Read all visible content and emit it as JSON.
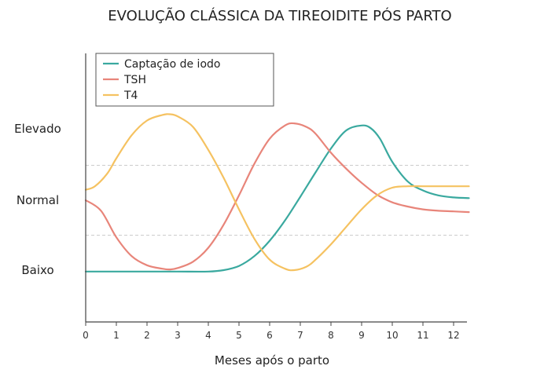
{
  "chart_data": {
    "type": "line",
    "title": "EVOLUÇÃO CLÁSSICA DA TIREOIDITE PÓS PARTO",
    "xlabel": "Meses após o parto",
    "ylabel": "",
    "xlim": [
      0,
      12.5
    ],
    "ylim": [
      -1.6,
      2.4
    ],
    "x_ticks": [
      "0",
      "1",
      "2",
      "3",
      "4",
      "5",
      "6",
      "7",
      "8",
      "9",
      "10",
      "11",
      "12"
    ],
    "y_levels": [
      {
        "label": "Elevado",
        "value": 1
      },
      {
        "label": "Normal",
        "value": 0
      },
      {
        "label": "Baixo",
        "value": -1
      }
    ],
    "reference_lines": [
      0.5,
      -0.5
    ],
    "legend_position": "top-left",
    "series": [
      {
        "name": "Captação de iodo",
        "color": "#3aa99f",
        "x": [
          0,
          1,
          2,
          3,
          4,
          4.5,
          5,
          5.5,
          6,
          6.5,
          7,
          7.5,
          8,
          8.5,
          9,
          9.3,
          9.6,
          10,
          10.5,
          11,
          11.5,
          12,
          12.5
        ],
        "values": [
          -1.02,
          -1.02,
          -1.02,
          -1.02,
          -1.02,
          -1.0,
          -0.94,
          -0.8,
          -0.58,
          -0.29,
          0.05,
          0.4,
          0.74,
          1.0,
          1.07,
          1.03,
          0.88,
          0.55,
          0.27,
          0.14,
          0.07,
          0.04,
          0.03
        ]
      },
      {
        "name": "TSH",
        "color": "#e8857a",
        "x": [
          0,
          0.5,
          1,
          1.5,
          2,
          2.5,
          2.75,
          3,
          3.5,
          4,
          4.5,
          5,
          5.5,
          6,
          6.5,
          6.8,
          7.2,
          7.5,
          8,
          8.5,
          9,
          9.5,
          10,
          10.5,
          11,
          11.5,
          12,
          12.5
        ],
        "values": [
          0.0,
          -0.15,
          -0.53,
          -0.8,
          -0.93,
          -0.98,
          -0.99,
          -0.97,
          -0.88,
          -0.68,
          -0.35,
          0.07,
          0.52,
          0.88,
          1.07,
          1.1,
          1.05,
          0.95,
          0.68,
          0.45,
          0.25,
          0.08,
          -0.03,
          -0.09,
          -0.13,
          -0.15,
          -0.16,
          -0.17
        ]
      },
      {
        "name": "T4",
        "color": "#f5c261",
        "x": [
          0,
          0.3,
          0.7,
          1,
          1.5,
          2,
          2.5,
          2.75,
          3,
          3.5,
          4,
          4.5,
          5,
          5.5,
          6,
          6.5,
          6.8,
          7.2,
          7.5,
          8,
          8.5,
          9,
          9.5,
          10,
          10.5,
          11,
          11.5,
          12,
          12.5
        ],
        "values": [
          0.15,
          0.2,
          0.38,
          0.6,
          0.93,
          1.14,
          1.22,
          1.23,
          1.2,
          1.05,
          0.72,
          0.32,
          -0.13,
          -0.55,
          -0.85,
          -0.98,
          -1.0,
          -0.95,
          -0.85,
          -0.63,
          -0.38,
          -0.13,
          0.07,
          0.18,
          0.2,
          0.2,
          0.2,
          0.2,
          0.2
        ]
      }
    ]
  }
}
